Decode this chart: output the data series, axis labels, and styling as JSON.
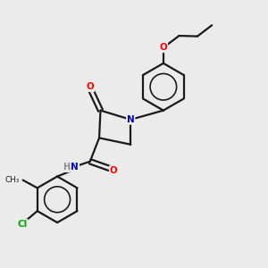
{
  "bg_color": "#ebebeb",
  "bond_color": "#1a1a1a",
  "atom_colors": {
    "O": "#ff0000",
    "N": "#0000cc",
    "Cl": "#00aa00",
    "C": "#1a1a1a",
    "H": "#888888"
  }
}
